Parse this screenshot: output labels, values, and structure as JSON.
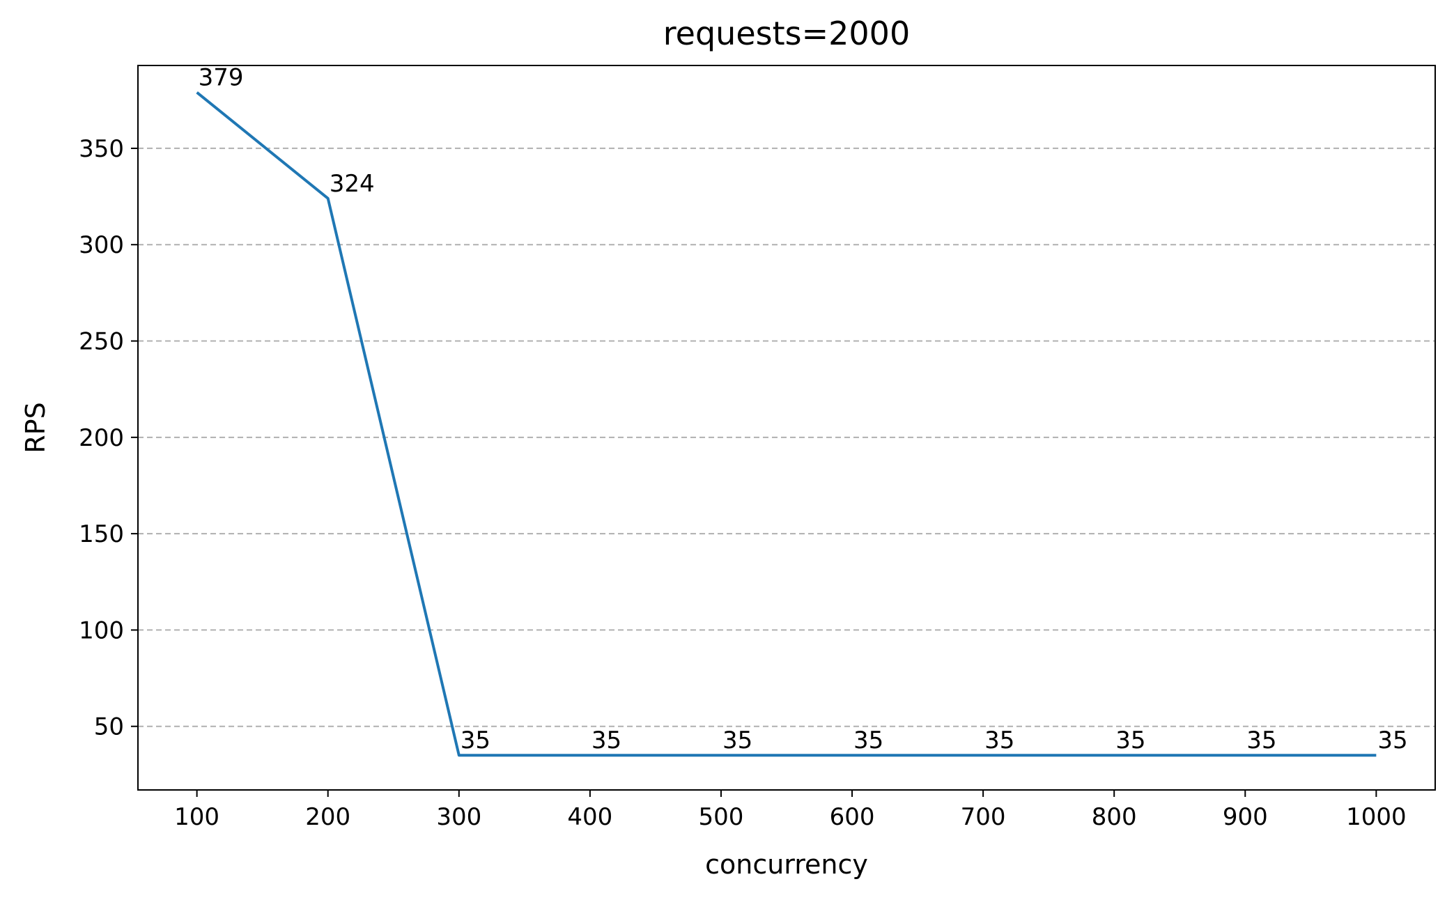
{
  "chart_data": {
    "type": "line",
    "title": "requests=2000",
    "xlabel": "concurrency",
    "ylabel": "RPS",
    "x": [
      100,
      200,
      300,
      400,
      500,
      600,
      700,
      800,
      900,
      1000
    ],
    "series": [
      {
        "values": [
          379,
          324,
          35,
          35,
          35,
          35,
          35,
          35,
          35,
          35
        ],
        "labels": [
          "379",
          "324",
          "35",
          "35",
          "35",
          "35",
          "35",
          "35",
          "35",
          "35"
        ],
        "color": "#1f77b4"
      }
    ],
    "xticks": [
      100,
      200,
      300,
      400,
      500,
      600,
      700,
      800,
      900,
      1000
    ],
    "xtick_labels": [
      "100",
      "200",
      "300",
      "400",
      "500",
      "600",
      "700",
      "800",
      "900",
      "1000"
    ],
    "yticks": [
      50,
      100,
      150,
      200,
      250,
      300,
      350
    ],
    "ytick_labels": [
      "50",
      "100",
      "150",
      "200",
      "250",
      "300",
      "350"
    ],
    "xlim": [
      55,
      1045
    ],
    "ylim": [
      17,
      393
    ],
    "grid": "y-dashed"
  }
}
